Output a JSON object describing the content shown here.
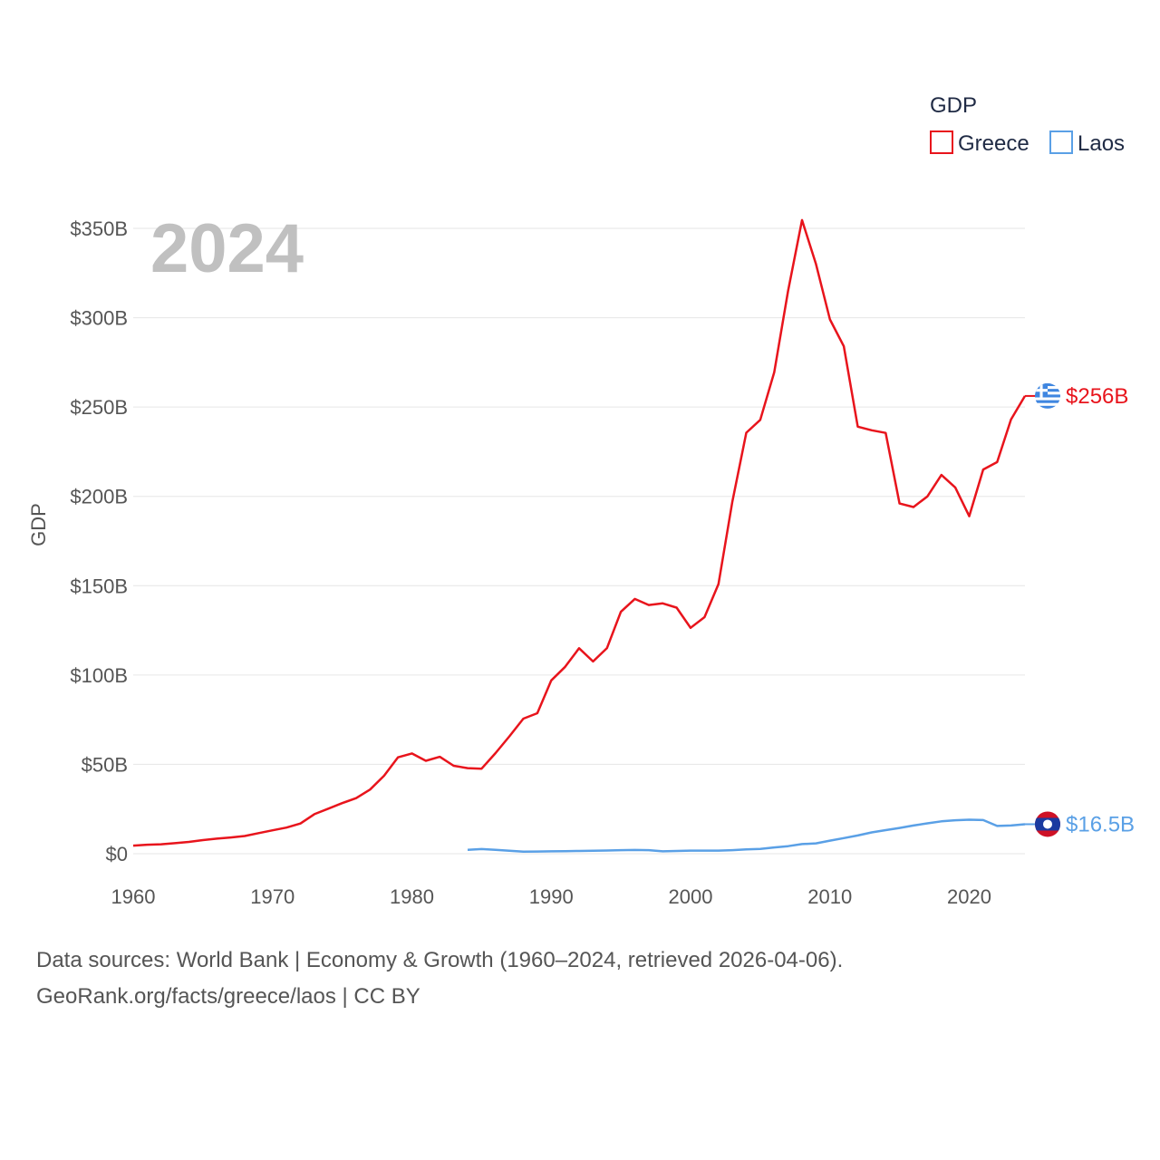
{
  "chart_data": {
    "type": "line",
    "ylabel": "GDP",
    "year_label": "2024",
    "legend_title": "GDP",
    "ylim": [
      0,
      350
    ],
    "xlim": [
      1960,
      2024
    ],
    "y_ticks": [
      {
        "value": 0,
        "label": "$0"
      },
      {
        "value": 50,
        "label": "$50B"
      },
      {
        "value": 100,
        "label": "$100B"
      },
      {
        "value": 150,
        "label": "$150B"
      },
      {
        "value": 200,
        "label": "$200B"
      },
      {
        "value": 250,
        "label": "$250B"
      },
      {
        "value": 300,
        "label": "$300B"
      },
      {
        "value": 350,
        "label": "$350B"
      }
    ],
    "x_ticks": [
      {
        "value": 1960,
        "label": "1960"
      },
      {
        "value": 1970,
        "label": "1970"
      },
      {
        "value": 1980,
        "label": "1980"
      },
      {
        "value": 1990,
        "label": "1990"
      },
      {
        "value": 2000,
        "label": "2000"
      },
      {
        "value": 2010,
        "label": "2010"
      },
      {
        "value": 2020,
        "label": "2020"
      }
    ],
    "series": [
      {
        "name": "Greece",
        "color": "#e8141c",
        "end_label": "$256B",
        "x": [
          1960,
          1961,
          1962,
          1963,
          1964,
          1965,
          1966,
          1967,
          1968,
          1969,
          1970,
          1971,
          1972,
          1973,
          1974,
          1975,
          1976,
          1977,
          1978,
          1979,
          1980,
          1981,
          1982,
          1983,
          1984,
          1985,
          1986,
          1987,
          1988,
          1989,
          1990,
          1991,
          1992,
          1993,
          1994,
          1995,
          1996,
          1997,
          1998,
          1999,
          2000,
          2001,
          2002,
          2003,
          2004,
          2005,
          2006,
          2007,
          2008,
          2009,
          2010,
          2011,
          2012,
          2013,
          2014,
          2015,
          2016,
          2017,
          2018,
          2019,
          2020,
          2021,
          2022,
          2023,
          2024
        ],
        "values": [
          4.5,
          5.0,
          5.3,
          5.9,
          6.6,
          7.6,
          8.4,
          9.1,
          9.9,
          11.5,
          13.1,
          14.6,
          16.9,
          22.1,
          25.2,
          28.3,
          31.1,
          35.9,
          43.6,
          53.9,
          56.1,
          52.0,
          54.2,
          49.2,
          47.9,
          47.6,
          56.3,
          65.7,
          75.6,
          78.6,
          97.0,
          104.6,
          115.0,
          107.6,
          115.1,
          135.4,
          142.6,
          139.2,
          140.1,
          137.7,
          126.4,
          132.4,
          150.9,
          197.0,
          235.6,
          242.8,
          269.4,
          315.0,
          354.6,
          330.0,
          299.0,
          284.0,
          239.0,
          237.0,
          235.5,
          196.0,
          194.0,
          200.0,
          212.0,
          205.0,
          188.9,
          215.0,
          219.2,
          243.0,
          256.2
        ]
      },
      {
        "name": "Laos",
        "color": "#5aa0e6",
        "end_label": "$16.5B",
        "x": [
          1984,
          1985,
          1986,
          1987,
          1988,
          1989,
          1990,
          1991,
          1992,
          1993,
          1994,
          1995,
          1996,
          1997,
          1998,
          1999,
          2000,
          2001,
          2002,
          2003,
          2004,
          2005,
          2006,
          2007,
          2008,
          2009,
          2010,
          2011,
          2012,
          2013,
          2014,
          2015,
          2016,
          2017,
          2018,
          2019,
          2020,
          2021,
          2022,
          2023,
          2024
        ],
        "values": [
          2.2,
          2.6,
          2.2,
          1.6,
          1.1,
          1.2,
          1.3,
          1.4,
          1.5,
          1.6,
          1.8,
          2.0,
          2.1,
          2.0,
          1.3,
          1.5,
          1.7,
          1.7,
          1.7,
          2.0,
          2.4,
          2.7,
          3.5,
          4.2,
          5.4,
          5.8,
          7.3,
          8.7,
          10.2,
          11.9,
          13.2,
          14.4,
          15.8,
          17.0,
          18.1,
          18.7,
          19.0,
          18.8,
          15.5,
          15.8,
          16.5
        ]
      }
    ]
  },
  "footer": {
    "line1": "Data sources: World Bank | Economy & Growth (1960–2024, retrieved 2026-04-06).",
    "line2": "GeoRank.org/facts/greece/laos | CC BY"
  }
}
